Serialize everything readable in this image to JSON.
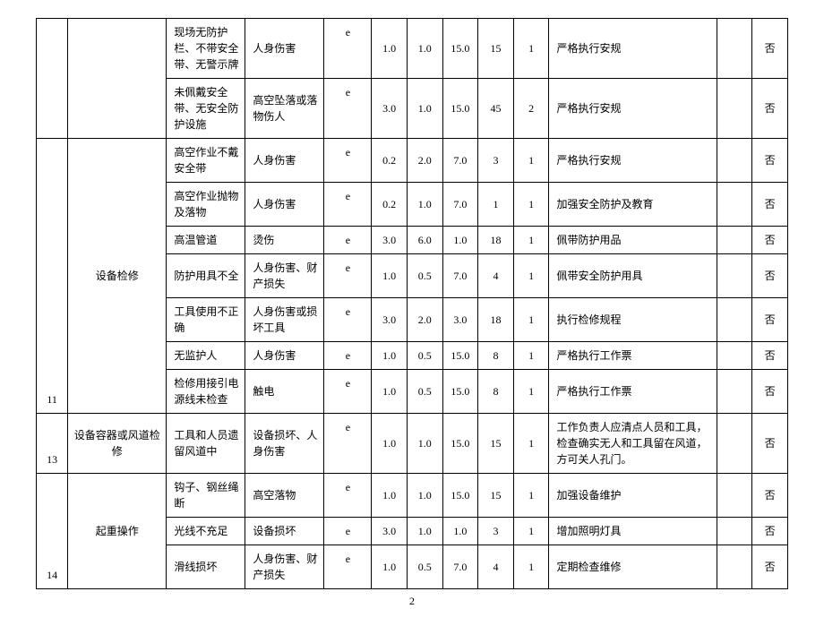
{
  "page_number": "2",
  "colors": {
    "border": "#000000",
    "text": "#000000",
    "bg": "#ffffff"
  },
  "font_size_pt": 9,
  "groups": [
    {
      "idx": "",
      "task": "",
      "rows": [
        {
          "cause": "现场无防护栏、不带安全带、无警示牌",
          "risk": "人身伤害",
          "mark": "e",
          "n1": "1.0",
          "n2": "1.0",
          "n3": "15.0",
          "n4": "15",
          "n5": "1",
          "measure": "严格执行安规",
          "last": "否"
        },
        {
          "cause": "未佩戴安全带、无安全防护设施",
          "risk": "高空坠落或落物伤人",
          "mark": "e",
          "n1": "3.0",
          "n2": "1.0",
          "n3": "15.0",
          "n4": "45",
          "n5": "2",
          "measure": "严格执行安规",
          "last": "否"
        }
      ]
    },
    {
      "idx": "11",
      "task": "设备检修",
      "rows": [
        {
          "cause": "高空作业不戴安全带",
          "risk": "人身伤害",
          "mark": "e",
          "n1": "0.2",
          "n2": "2.0",
          "n3": "7.0",
          "n4": "3",
          "n5": "1",
          "measure": "严格执行安规",
          "last": "否"
        },
        {
          "cause": "高空作业抛物及落物",
          "risk": "人身伤害",
          "mark": "e",
          "n1": "0.2",
          "n2": "1.0",
          "n3": "7.0",
          "n4": "1",
          "n5": "1",
          "measure": "加强安全防护及教育",
          "last": "否"
        },
        {
          "cause": "高温管道",
          "risk": "烫伤",
          "mark": "e",
          "n1": "3.0",
          "n2": "6.0",
          "n3": "1.0",
          "n4": "18",
          "n5": "1",
          "measure": "佩带防护用品",
          "last": "否"
        },
        {
          "cause": "防护用具不全",
          "risk": "人身伤害、财产损失",
          "mark": "e",
          "n1": "1.0",
          "n2": "0.5",
          "n3": "7.0",
          "n4": "4",
          "n5": "1",
          "measure": "佩带安全防护用具",
          "last": "否"
        },
        {
          "cause": "工具使用不正确",
          "risk": "人身伤害或损坏工具",
          "mark": "e",
          "n1": "3.0",
          "n2": "2.0",
          "n3": "3.0",
          "n4": "18",
          "n5": "1",
          "measure": "执行检修规程",
          "last": "否"
        },
        {
          "cause": "无监护人",
          "risk": "人身伤害",
          "mark": "e",
          "n1": "1.0",
          "n2": "0.5",
          "n3": "15.0",
          "n4": "8",
          "n5": "1",
          "measure": "严格执行工作票",
          "last": "否"
        },
        {
          "cause": "检修用接引电源线未检查",
          "risk": "触电",
          "mark": "e",
          "n1": "1.0",
          "n2": "0.5",
          "n3": "15.0",
          "n4": "8",
          "n5": "1",
          "measure": "严格执行工作票",
          "last": "否"
        }
      ]
    },
    {
      "idx": "13",
      "task": "设备容器或风道检修",
      "rows": [
        {
          "cause": "工具和人员遗留风道中",
          "risk": "设备损坏、人身伤害",
          "mark": "e",
          "n1": "1.0",
          "n2": "1.0",
          "n3": "15.0",
          "n4": "15",
          "n5": "1",
          "measure": "工作负责人应清点人员和工具，检查确实无人和工具留在风道，方可关人孔门。",
          "last": "否"
        }
      ]
    },
    {
      "idx": "14",
      "task": "起重操作",
      "rows": [
        {
          "cause": "钩子、钢丝绳断",
          "risk": "高空落物",
          "mark": "e",
          "n1": "1.0",
          "n2": "1.0",
          "n3": "15.0",
          "n4": "15",
          "n5": "1",
          "measure": "加强设备维护",
          "last": "否"
        },
        {
          "cause": "光线不充足",
          "risk": "设备损坏",
          "mark": "e",
          "n1": "3.0",
          "n2": "1.0",
          "n3": "1.0",
          "n4": "3",
          "n5": "1",
          "measure": "增加照明灯具",
          "last": "否"
        },
        {
          "cause": "滑线损坏",
          "risk": "人身伤害、财产损失",
          "mark": "e",
          "n1": "1.0",
          "n2": "0.5",
          "n3": "7.0",
          "n4": "4",
          "n5": "1",
          "measure": "定期检查维修",
          "last": "否"
        }
      ]
    }
  ]
}
